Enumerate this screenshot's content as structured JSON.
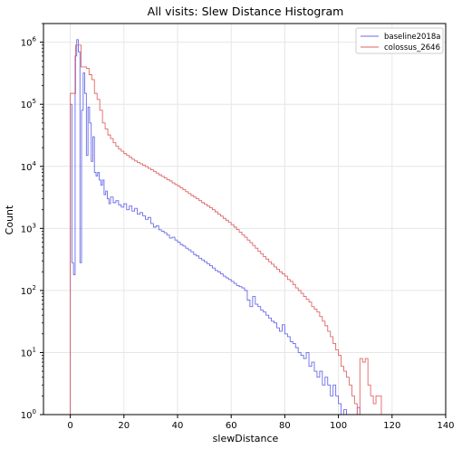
{
  "chart_data": {
    "type": "histogram",
    "title": "All visits: Slew Distance Histogram",
    "xlabel": "slewDistance",
    "ylabel": "Count",
    "xlim": [
      -10,
      140
    ],
    "ylim": [
      1,
      2000000
    ],
    "yscale": "log",
    "grid": true,
    "legend_position": "top-right",
    "x_ticks": [
      0,
      20,
      40,
      60,
      80,
      100,
      120,
      140
    ],
    "y_ticks": [
      {
        "value": 1,
        "base": "10",
        "exp": "0"
      },
      {
        "value": 10,
        "base": "10",
        "exp": "1"
      },
      {
        "value": 100,
        "base": "10",
        "exp": "2"
      },
      {
        "value": 1000,
        "base": "10",
        "exp": "3"
      },
      {
        "value": 10000,
        "base": "10",
        "exp": "4"
      },
      {
        "value": 100000,
        "base": "10",
        "exp": "5"
      },
      {
        "value": 1000000,
        "base": "10",
        "exp": "6"
      }
    ],
    "series": [
      {
        "name": "baseline2018a",
        "color": "#6b6bea",
        "points": [
          [
            0,
            100000
          ],
          [
            0.6,
            280
          ],
          [
            1.2,
            180
          ],
          [
            1.8,
            600000
          ],
          [
            2.4,
            1100000
          ],
          [
            3.0,
            700000
          ],
          [
            3.6,
            280
          ],
          [
            4.2,
            80000
          ],
          [
            4.8,
            320000
          ],
          [
            5.4,
            150000
          ],
          [
            6.0,
            15000
          ],
          [
            6.6,
            90000
          ],
          [
            7.2,
            50000
          ],
          [
            7.8,
            12000
          ],
          [
            8.4,
            30000
          ],
          [
            9.0,
            8000
          ],
          [
            9.6,
            7000
          ],
          [
            10.2,
            8000
          ],
          [
            10.8,
            6000
          ],
          [
            11.4,
            5000
          ],
          [
            12.0,
            6000
          ],
          [
            12.6,
            3500
          ],
          [
            13.2,
            4000
          ],
          [
            13.8,
            3000
          ],
          [
            14.4,
            2500
          ],
          [
            15,
            3200
          ],
          [
            16,
            2600
          ],
          [
            17,
            2800
          ],
          [
            18,
            2400
          ],
          [
            19,
            2200
          ],
          [
            20,
            2500
          ],
          [
            21,
            2000
          ],
          [
            22,
            2300
          ],
          [
            23,
            1900
          ],
          [
            24,
            2100
          ],
          [
            25,
            1700
          ],
          [
            26,
            1800
          ],
          [
            27,
            1600
          ],
          [
            28,
            1400
          ],
          [
            29,
            1500
          ],
          [
            30,
            1200
          ],
          [
            31,
            1050
          ],
          [
            32,
            1100
          ],
          [
            33,
            950
          ],
          [
            34,
            900
          ],
          [
            35,
            850
          ],
          [
            36,
            780
          ],
          [
            37,
            700
          ],
          [
            38,
            720
          ],
          [
            39,
            650
          ],
          [
            40,
            600
          ],
          [
            41,
            550
          ],
          [
            42,
            520
          ],
          [
            43,
            480
          ],
          [
            44,
            450
          ],
          [
            45,
            420
          ],
          [
            46,
            380
          ],
          [
            47,
            360
          ],
          [
            48,
            330
          ],
          [
            49,
            310
          ],
          [
            50,
            290
          ],
          [
            51,
            270
          ],
          [
            52,
            250
          ],
          [
            53,
            230
          ],
          [
            54,
            210
          ],
          [
            55,
            200
          ],
          [
            56,
            185
          ],
          [
            57,
            170
          ],
          [
            58,
            160
          ],
          [
            59,
            150
          ],
          [
            60,
            140
          ],
          [
            61,
            130
          ],
          [
            62,
            120
          ],
          [
            63,
            115
          ],
          [
            64,
            110
          ],
          [
            65,
            100
          ],
          [
            66,
            70
          ],
          [
            67,
            55
          ],
          [
            68,
            80
          ],
          [
            69,
            60
          ],
          [
            70,
            55
          ],
          [
            71,
            48
          ],
          [
            72,
            45
          ],
          [
            73,
            40
          ],
          [
            74,
            36
          ],
          [
            75,
            32
          ],
          [
            76,
            30
          ],
          [
            77,
            25
          ],
          [
            78,
            22
          ],
          [
            79,
            28
          ],
          [
            80,
            20
          ],
          [
            81,
            18
          ],
          [
            82,
            15
          ],
          [
            83,
            14
          ],
          [
            84,
            12
          ],
          [
            85,
            10
          ],
          [
            86,
            9
          ],
          [
            87,
            8
          ],
          [
            88,
            10
          ],
          [
            89,
            6
          ],
          [
            90,
            7
          ],
          [
            91,
            5
          ],
          [
            92,
            4
          ],
          [
            93,
            5
          ],
          [
            94,
            3
          ],
          [
            95,
            4
          ],
          [
            96,
            3
          ],
          [
            97,
            2
          ],
          [
            98,
            3
          ],
          [
            99,
            2
          ],
          [
            100,
            1.5
          ],
          [
            101,
            1
          ],
          [
            102,
            1.2
          ],
          [
            103,
            1
          ],
          [
            104,
            1
          ],
          [
            105,
            1
          ],
          [
            106,
            1
          ],
          [
            107,
            1.3
          ],
          [
            108,
            1
          ],
          [
            110,
            1
          ],
          [
            112,
            1
          ],
          [
            115,
            1
          ],
          [
            118,
            1
          ]
        ]
      },
      {
        "name": "colossus_2646",
        "color": "#e06666",
        "points": [
          [
            0,
            150000
          ],
          [
            1,
            150000
          ],
          [
            2,
            900000
          ],
          [
            3,
            900000
          ],
          [
            4,
            400000
          ],
          [
            5,
            400000
          ],
          [
            6,
            380000
          ],
          [
            7,
            300000
          ],
          [
            8,
            250000
          ],
          [
            9,
            150000
          ],
          [
            10,
            120000
          ],
          [
            11,
            80000
          ],
          [
            12,
            50000
          ],
          [
            13,
            40000
          ],
          [
            14,
            32000
          ],
          [
            15,
            28000
          ],
          [
            16,
            24000
          ],
          [
            17,
            21000
          ],
          [
            18,
            19000
          ],
          [
            19,
            17500
          ],
          [
            20,
            16000
          ],
          [
            21,
            15000
          ],
          [
            22,
            14000
          ],
          [
            23,
            13000
          ],
          [
            24,
            12200
          ],
          [
            25,
            11500
          ],
          [
            26,
            11000
          ],
          [
            27,
            10400
          ],
          [
            28,
            9900
          ],
          [
            29,
            9300
          ],
          [
            30,
            8800
          ],
          [
            31,
            8300
          ],
          [
            32,
            7800
          ],
          [
            33,
            7300
          ],
          [
            34,
            6900
          ],
          [
            35,
            6500
          ],
          [
            36,
            6100
          ],
          [
            37,
            5800
          ],
          [
            38,
            5400
          ],
          [
            39,
            5100
          ],
          [
            40,
            4800
          ],
          [
            41,
            4500
          ],
          [
            42,
            4200
          ],
          [
            43,
            3900
          ],
          [
            44,
            3650
          ],
          [
            45,
            3400
          ],
          [
            46,
            3200
          ],
          [
            47,
            3000
          ],
          [
            48,
            2800
          ],
          [
            49,
            2600
          ],
          [
            50,
            2450
          ],
          [
            51,
            2300
          ],
          [
            52,
            2150
          ],
          [
            53,
            2000
          ],
          [
            54,
            1850
          ],
          [
            55,
            1700
          ],
          [
            56,
            1580
          ],
          [
            57,
            1450
          ],
          [
            58,
            1350
          ],
          [
            59,
            1250
          ],
          [
            60,
            1150
          ],
          [
            61,
            1050
          ],
          [
            62,
            960
          ],
          [
            63,
            870
          ],
          [
            64,
            790
          ],
          [
            65,
            720
          ],
          [
            66,
            650
          ],
          [
            67,
            590
          ],
          [
            68,
            530
          ],
          [
            69,
            480
          ],
          [
            70,
            430
          ],
          [
            71,
            390
          ],
          [
            72,
            350
          ],
          [
            73,
            320
          ],
          [
            74,
            290
          ],
          [
            75,
            265
          ],
          [
            76,
            240
          ],
          [
            77,
            220
          ],
          [
            78,
            200
          ],
          [
            79,
            185
          ],
          [
            80,
            170
          ],
          [
            81,
            150
          ],
          [
            82,
            140
          ],
          [
            83,
            125
          ],
          [
            84,
            110
          ],
          [
            85,
            100
          ],
          [
            86,
            90
          ],
          [
            87,
            80
          ],
          [
            88,
            72
          ],
          [
            89,
            65
          ],
          [
            90,
            55
          ],
          [
            91,
            50
          ],
          [
            92,
            45
          ],
          [
            93,
            38
          ],
          [
            94,
            32
          ],
          [
            95,
            27
          ],
          [
            96,
            22
          ],
          [
            97,
            18
          ],
          [
            98,
            14
          ],
          [
            99,
            11
          ],
          [
            100,
            9
          ],
          [
            101,
            6
          ],
          [
            102,
            5
          ],
          [
            103,
            4
          ],
          [
            104,
            3
          ],
          [
            105,
            2
          ],
          [
            106,
            1.5
          ],
          [
            107,
            1
          ],
          [
            108,
            8
          ],
          [
            109,
            7
          ],
          [
            110,
            8
          ],
          [
            111,
            3
          ],
          [
            112,
            2
          ],
          [
            113,
            1.5
          ],
          [
            114,
            2
          ],
          [
            116,
            1
          ],
          [
            118,
            1
          ],
          [
            120,
            1
          ]
        ]
      }
    ]
  }
}
